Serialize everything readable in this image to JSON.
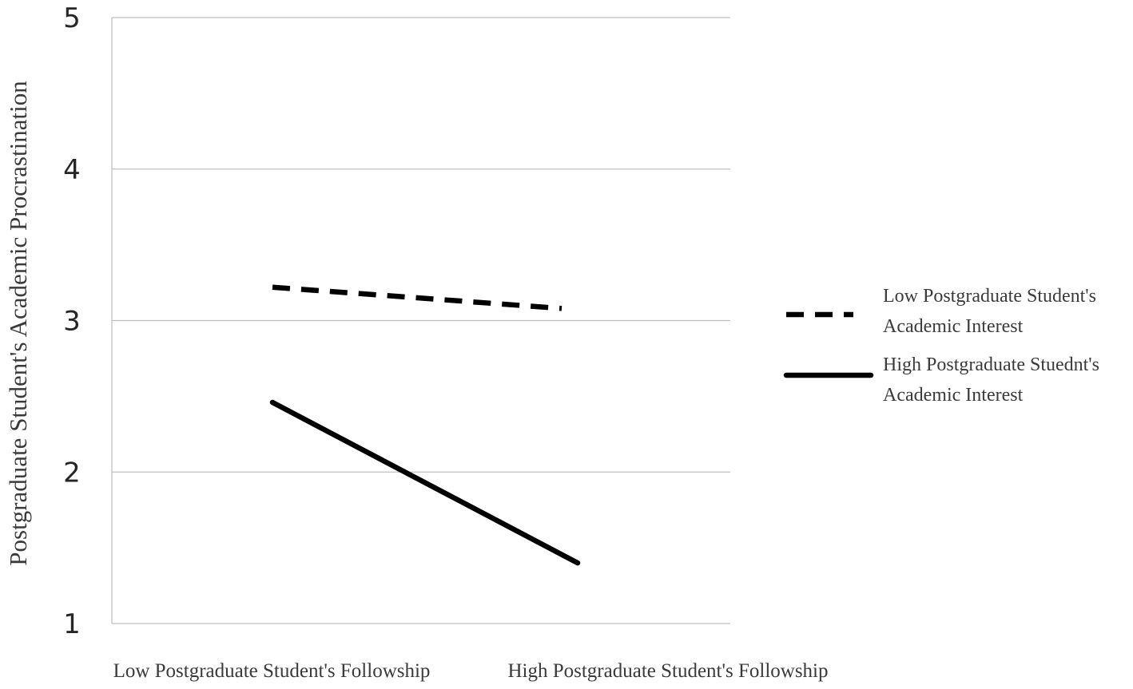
{
  "chart_data": {
    "type": "line",
    "title": "",
    "xlabel": "",
    "ylabel": "Postgraduate Student's Academic Procrastination",
    "ylim": [
      1,
      5
    ],
    "yticks": [
      1,
      2,
      3,
      4,
      5
    ],
    "categories": [
      "Low Postgraduate Student's Followship",
      "High Postgraduate Student's Followship"
    ],
    "grid": "horizontal",
    "legend_position": "right",
    "series": [
      {
        "name_lines": [
          "Low Postgraduate Student's",
          "Academic Interest"
        ],
        "values": [
          3.22,
          3.08
        ],
        "style": "dashed",
        "color": "#000000"
      },
      {
        "name_lines": [
          "High Postgraduate Stuednt's",
          "Academic Interest"
        ],
        "values": [
          2.46,
          1.4
        ],
        "style": "solid",
        "color": "#000000"
      }
    ],
    "colors": {
      "grid": "#bfbfbf",
      "axis": "#bfbfbf",
      "line": "#000000"
    }
  }
}
